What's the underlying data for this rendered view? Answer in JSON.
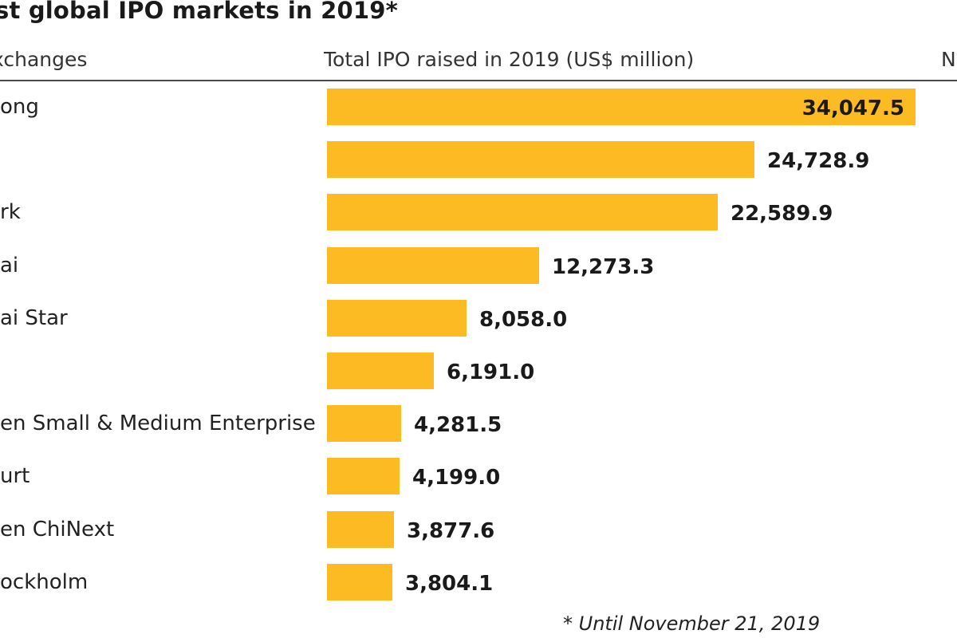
{
  "title": "st global IPO markets in 2019*",
  "headers": {
    "exchanges": "xchanges",
    "total": "Total IPO raised in 2019 (US$ million)",
    "right": "N"
  },
  "footnote": "* Until November 21, 2019",
  "colors": {
    "bar": "#FCBB22",
    "rule": "#4a4a4a"
  },
  "chart_data": {
    "type": "bar",
    "orientation": "horizontal",
    "title": "st global IPO markets in 2019*",
    "xlabel": "Total IPO raised in 2019 (US$ million)",
    "ylabel": "xchanges",
    "categories": [
      "ong",
      "",
      "rk",
      "ai",
      "ai Star",
      "",
      "en Small & Medium Enterprise",
      "urt",
      "en ChiNext",
      "ockholm"
    ],
    "values": [
      34047.5,
      24728.9,
      22589.9,
      12273.3,
      8058.0,
      6191.0,
      4281.5,
      4199.0,
      3877.6,
      3804.1
    ],
    "value_labels": [
      "34,047.5",
      "24,728.9",
      "22,589.9",
      "12,273.3",
      "8,058.0",
      "6,191.0",
      "4,281.5",
      "4,199.0",
      "3,877.6",
      "3,804.1"
    ],
    "xlim": [
      0,
      34047.5
    ]
  }
}
